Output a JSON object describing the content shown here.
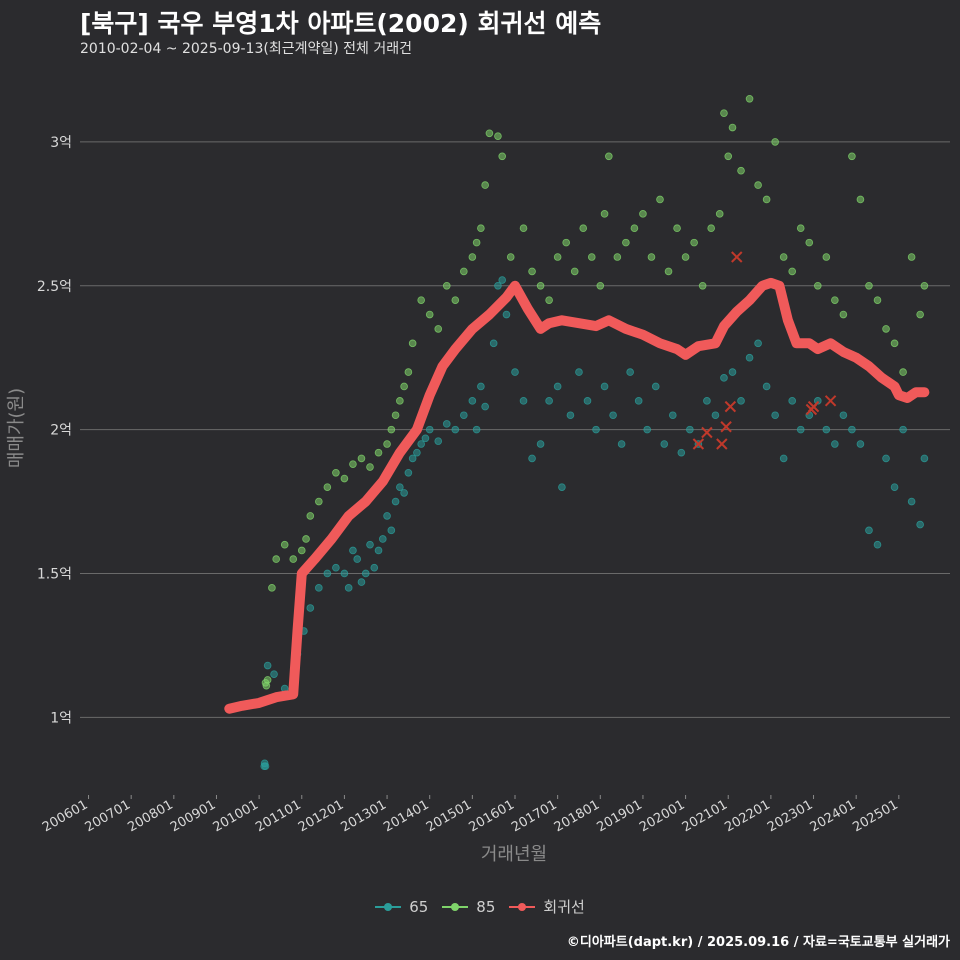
{
  "header": {
    "title": "[북구] 국우 부영1차 아파트(2002) 회귀선 예측",
    "subtitle": "2010-02-04 ~ 2025-09-13(최근계약일) 전체 거래건"
  },
  "footer": {
    "caption": "©디아파트(dapt.kr) / 2025.09.16 / 자료=국토교통부 실거래가"
  },
  "colors": {
    "background": "#2b2b2e",
    "grid": "#6a6a6a",
    "series_65": "#2a9d9a",
    "series_85": "#7fd36a",
    "regression": "#f05a5a",
    "cancelled": "#c0392b"
  },
  "chart_data": {
    "type": "scatter",
    "title": "[북구] 국우 부영1차 아파트(2002) 회귀선 예측",
    "xlabel": "거래년월",
    "ylabel": "매매가(원)",
    "xlim": [
      2005.8,
      2026.2
    ],
    "ylim": [
      0.73,
      3.25
    ],
    "x_ticks": [
      {
        "value": 2006,
        "label": "200601"
      },
      {
        "value": 2007,
        "label": "200701"
      },
      {
        "value": 2008,
        "label": "200801"
      },
      {
        "value": 2009,
        "label": "200901"
      },
      {
        "value": 2010,
        "label": "201001"
      },
      {
        "value": 2011,
        "label": "201101"
      },
      {
        "value": 2012,
        "label": "201201"
      },
      {
        "value": 2013,
        "label": "201301"
      },
      {
        "value": 2014,
        "label": "201401"
      },
      {
        "value": 2015,
        "label": "201501"
      },
      {
        "value": 2016,
        "label": "201601"
      },
      {
        "value": 2017,
        "label": "201701"
      },
      {
        "value": 2018,
        "label": "201801"
      },
      {
        "value": 2019,
        "label": "201901"
      },
      {
        "value": 2020,
        "label": "202001"
      },
      {
        "value": 2021,
        "label": "202101"
      },
      {
        "value": 2022,
        "label": "202201"
      },
      {
        "value": 2023,
        "label": "202301"
      },
      {
        "value": 2024,
        "label": "202401"
      },
      {
        "value": 2025,
        "label": "202501"
      }
    ],
    "y_ticks": [
      {
        "value": 1.0,
        "label": "1억"
      },
      {
        "value": 1.5,
        "label": "1.5억"
      },
      {
        "value": 2.0,
        "label": "2억"
      },
      {
        "value": 2.5,
        "label": "2.5억"
      },
      {
        "value": 3.0,
        "label": "3억"
      }
    ],
    "legend": {
      "position": "bottom",
      "items": [
        {
          "key": "65",
          "label": "65"
        },
        {
          "key": "85",
          "label": "85"
        },
        {
          "key": "regression",
          "label": "회귀선"
        }
      ]
    },
    "series": [
      {
        "name": "65",
        "points": [
          [
            2010.12,
            0.83
          ],
          [
            2010.13,
            0.84
          ],
          [
            2010.15,
            0.83
          ],
          [
            2010.2,
            1.18
          ],
          [
            2010.35,
            1.15
          ],
          [
            2010.6,
            1.1
          ],
          [
            2010.9,
            1.22
          ],
          [
            2011.05,
            1.3
          ],
          [
            2011.2,
            1.38
          ],
          [
            2011.4,
            1.45
          ],
          [
            2011.6,
            1.5
          ],
          [
            2011.8,
            1.52
          ],
          [
            2012.0,
            1.5
          ],
          [
            2012.1,
            1.45
          ],
          [
            2012.2,
            1.58
          ],
          [
            2012.3,
            1.55
          ],
          [
            2012.4,
            1.47
          ],
          [
            2012.5,
            1.5
          ],
          [
            2012.6,
            1.6
          ],
          [
            2012.7,
            1.52
          ],
          [
            2012.8,
            1.58
          ],
          [
            2012.9,
            1.62
          ],
          [
            2013.0,
            1.7
          ],
          [
            2013.1,
            1.65
          ],
          [
            2013.2,
            1.75
          ],
          [
            2013.3,
            1.8
          ],
          [
            2013.4,
            1.78
          ],
          [
            2013.5,
            1.85
          ],
          [
            2013.6,
            1.9
          ],
          [
            2013.7,
            1.92
          ],
          [
            2013.8,
            1.95
          ],
          [
            2013.9,
            1.97
          ],
          [
            2014.0,
            2.0
          ],
          [
            2014.2,
            1.96
          ],
          [
            2014.4,
            2.02
          ],
          [
            2014.6,
            2.0
          ],
          [
            2014.8,
            2.05
          ],
          [
            2015.0,
            2.1
          ],
          [
            2015.1,
            2.0
          ],
          [
            2015.2,
            2.15
          ],
          [
            2015.3,
            2.08
          ],
          [
            2015.5,
            2.3
          ],
          [
            2015.6,
            2.5
          ],
          [
            2015.7,
            2.52
          ],
          [
            2015.8,
            2.4
          ],
          [
            2016.0,
            2.2
          ],
          [
            2016.2,
            2.1
          ],
          [
            2016.4,
            1.9
          ],
          [
            2016.6,
            1.95
          ],
          [
            2016.8,
            2.1
          ],
          [
            2017.0,
            2.15
          ],
          [
            2017.1,
            1.8
          ],
          [
            2017.3,
            2.05
          ],
          [
            2017.5,
            2.2
          ],
          [
            2017.7,
            2.1
          ],
          [
            2017.9,
            2.0
          ],
          [
            2018.1,
            2.15
          ],
          [
            2018.3,
            2.05
          ],
          [
            2018.5,
            1.95
          ],
          [
            2018.7,
            2.2
          ],
          [
            2018.9,
            2.1
          ],
          [
            2019.1,
            2.0
          ],
          [
            2019.3,
            2.15
          ],
          [
            2019.5,
            1.95
          ],
          [
            2019.7,
            2.05
          ],
          [
            2019.9,
            1.92
          ],
          [
            2020.1,
            2.0
          ],
          [
            2020.3,
            1.95
          ],
          [
            2020.5,
            2.1
          ],
          [
            2020.7,
            2.05
          ],
          [
            2020.9,
            2.18
          ],
          [
            2021.1,
            2.2
          ],
          [
            2021.3,
            2.1
          ],
          [
            2021.5,
            2.25
          ],
          [
            2021.7,
            2.3
          ],
          [
            2021.9,
            2.15
          ],
          [
            2022.1,
            2.05
          ],
          [
            2022.3,
            1.9
          ],
          [
            2022.5,
            2.1
          ],
          [
            2022.7,
            2.0
          ],
          [
            2022.9,
            2.05
          ],
          [
            2023.1,
            2.1
          ],
          [
            2023.3,
            2.0
          ],
          [
            2023.5,
            1.95
          ],
          [
            2023.7,
            2.05
          ],
          [
            2023.9,
            2.0
          ],
          [
            2024.1,
            1.95
          ],
          [
            2024.3,
            1.65
          ],
          [
            2024.5,
            1.6
          ],
          [
            2024.7,
            1.9
          ],
          [
            2024.9,
            1.8
          ],
          [
            2025.1,
            2.0
          ],
          [
            2025.3,
            1.75
          ],
          [
            2025.5,
            1.67
          ],
          [
            2025.6,
            1.9
          ]
        ]
      },
      {
        "name": "85",
        "points": [
          [
            2010.15,
            1.12
          ],
          [
            2010.17,
            1.11
          ],
          [
            2010.2,
            1.13
          ],
          [
            2010.3,
            1.45
          ],
          [
            2010.4,
            1.55
          ],
          [
            2010.6,
            1.6
          ],
          [
            2010.8,
            1.55
          ],
          [
            2011.0,
            1.58
          ],
          [
            2011.1,
            1.62
          ],
          [
            2011.2,
            1.7
          ],
          [
            2011.4,
            1.75
          ],
          [
            2011.6,
            1.8
          ],
          [
            2011.8,
            1.85
          ],
          [
            2012.0,
            1.83
          ],
          [
            2012.2,
            1.88
          ],
          [
            2012.4,
            1.9
          ],
          [
            2012.6,
            1.87
          ],
          [
            2012.8,
            1.92
          ],
          [
            2013.0,
            1.95
          ],
          [
            2013.1,
            2.0
          ],
          [
            2013.2,
            2.05
          ],
          [
            2013.3,
            2.1
          ],
          [
            2013.4,
            2.15
          ],
          [
            2013.5,
            2.2
          ],
          [
            2013.6,
            2.3
          ],
          [
            2013.8,
            2.45
          ],
          [
            2014.0,
            2.4
          ],
          [
            2014.2,
            2.35
          ],
          [
            2014.4,
            2.5
          ],
          [
            2014.6,
            2.45
          ],
          [
            2014.8,
            2.55
          ],
          [
            2015.0,
            2.6
          ],
          [
            2015.1,
            2.65
          ],
          [
            2015.2,
            2.7
          ],
          [
            2015.3,
            2.85
          ],
          [
            2015.4,
            3.03
          ],
          [
            2015.6,
            3.02
          ],
          [
            2015.7,
            2.95
          ],
          [
            2015.9,
            2.6
          ],
          [
            2016.2,
            2.7
          ],
          [
            2016.4,
            2.55
          ],
          [
            2016.6,
            2.5
          ],
          [
            2016.8,
            2.45
          ],
          [
            2017.0,
            2.6
          ],
          [
            2017.2,
            2.65
          ],
          [
            2017.4,
            2.55
          ],
          [
            2017.6,
            2.7
          ],
          [
            2017.8,
            2.6
          ],
          [
            2018.0,
            2.5
          ],
          [
            2018.1,
            2.75
          ],
          [
            2018.2,
            2.95
          ],
          [
            2018.4,
            2.6
          ],
          [
            2018.6,
            2.65
          ],
          [
            2018.8,
            2.7
          ],
          [
            2019.0,
            2.75
          ],
          [
            2019.2,
            2.6
          ],
          [
            2019.4,
            2.8
          ],
          [
            2019.6,
            2.55
          ],
          [
            2019.8,
            2.7
          ],
          [
            2020.0,
            2.6
          ],
          [
            2020.2,
            2.65
          ],
          [
            2020.4,
            2.5
          ],
          [
            2020.6,
            2.7
          ],
          [
            2020.8,
            2.75
          ],
          [
            2020.9,
            3.1
          ],
          [
            2021.0,
            2.95
          ],
          [
            2021.1,
            3.05
          ],
          [
            2021.3,
            2.9
          ],
          [
            2021.5,
            3.15
          ],
          [
            2021.7,
            2.85
          ],
          [
            2021.9,
            2.8
          ],
          [
            2022.1,
            3.0
          ],
          [
            2022.3,
            2.6
          ],
          [
            2022.5,
            2.55
          ],
          [
            2022.7,
            2.7
          ],
          [
            2022.9,
            2.65
          ],
          [
            2023.1,
            2.5
          ],
          [
            2023.3,
            2.6
          ],
          [
            2023.5,
            2.45
          ],
          [
            2023.7,
            2.4
          ],
          [
            2023.9,
            2.95
          ],
          [
            2024.1,
            2.8
          ],
          [
            2024.3,
            2.5
          ],
          [
            2024.5,
            2.45
          ],
          [
            2024.7,
            2.35
          ],
          [
            2024.9,
            2.3
          ],
          [
            2025.1,
            2.2
          ],
          [
            2025.3,
            2.6
          ],
          [
            2025.5,
            2.4
          ],
          [
            2025.6,
            2.5
          ]
        ]
      },
      {
        "name": "회귀선",
        "points": [
          [
            2009.3,
            1.03
          ],
          [
            2009.6,
            1.04
          ],
          [
            2010.0,
            1.05
          ],
          [
            2010.4,
            1.07
          ],
          [
            2010.8,
            1.08
          ],
          [
            2010.9,
            1.3
          ],
          [
            2011.0,
            1.5
          ],
          [
            2011.3,
            1.55
          ],
          [
            2011.7,
            1.62
          ],
          [
            2012.1,
            1.7
          ],
          [
            2012.5,
            1.75
          ],
          [
            2012.9,
            1.82
          ],
          [
            2013.3,
            1.92
          ],
          [
            2013.7,
            2.0
          ],
          [
            2014.0,
            2.12
          ],
          [
            2014.3,
            2.22
          ],
          [
            2014.6,
            2.28
          ],
          [
            2015.0,
            2.35
          ],
          [
            2015.4,
            2.4
          ],
          [
            2015.8,
            2.46
          ],
          [
            2016.0,
            2.5
          ],
          [
            2016.3,
            2.42
          ],
          [
            2016.6,
            2.35
          ],
          [
            2016.8,
            2.37
          ],
          [
            2017.1,
            2.38
          ],
          [
            2017.5,
            2.37
          ],
          [
            2017.9,
            2.36
          ],
          [
            2018.2,
            2.38
          ],
          [
            2018.6,
            2.35
          ],
          [
            2019.0,
            2.33
          ],
          [
            2019.4,
            2.3
          ],
          [
            2019.8,
            2.28
          ],
          [
            2020.0,
            2.26
          ],
          [
            2020.3,
            2.29
          ],
          [
            2020.7,
            2.3
          ],
          [
            2020.9,
            2.36
          ],
          [
            2021.2,
            2.41
          ],
          [
            2021.5,
            2.45
          ],
          [
            2021.8,
            2.5
          ],
          [
            2022.0,
            2.51
          ],
          [
            2022.2,
            2.5
          ],
          [
            2022.4,
            2.38
          ],
          [
            2022.6,
            2.3
          ],
          [
            2022.9,
            2.3
          ],
          [
            2023.1,
            2.28
          ],
          [
            2023.4,
            2.3
          ],
          [
            2023.7,
            2.27
          ],
          [
            2024.0,
            2.25
          ],
          [
            2024.3,
            2.22
          ],
          [
            2024.6,
            2.18
          ],
          [
            2024.9,
            2.15
          ],
          [
            2025.0,
            2.12
          ],
          [
            2025.2,
            2.11
          ],
          [
            2025.4,
            2.13
          ],
          [
            2025.6,
            2.13
          ]
        ]
      },
      {
        "name": "cancelled",
        "points": [
          [
            2020.3,
            1.95
          ],
          [
            2020.5,
            1.99
          ],
          [
            2020.85,
            1.95
          ],
          [
            2020.95,
            2.01
          ],
          [
            2021.05,
            2.08
          ],
          [
            2021.2,
            2.6
          ],
          [
            2022.95,
            2.07
          ],
          [
            2023.0,
            2.08
          ],
          [
            2023.4,
            2.1
          ]
        ]
      }
    ]
  }
}
